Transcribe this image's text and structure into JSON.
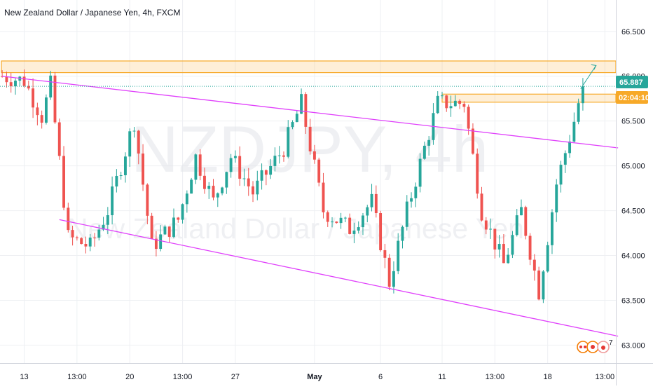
{
  "header": {
    "title": "New Zealand Dollar / Japanese Yen, 4h, FXCM"
  },
  "watermark": {
    "symbol": "NZDJPY, 4h",
    "name": "New Zealand Dollar / Japanese Yen"
  },
  "badges": {
    "price": "65.887",
    "countdown": "02:04:10",
    "indicator_count": "7"
  },
  "colors": {
    "up": "#26a69a",
    "down": "#ef5350",
    "channel": "#e040fb",
    "zone": "#f7a928",
    "price_line": "#26a69a"
  },
  "chart_data": {
    "type": "candlestick",
    "symbol": "NZDJPY",
    "interval": "4h",
    "source": "FXCM",
    "last_price": 65.887,
    "y_ticks": [
      "66.500",
      "66.000",
      "65.500",
      "65.000",
      "64.500",
      "64.000",
      "63.500",
      "63.000"
    ],
    "x_ticks": [
      "13",
      "13:00",
      "20",
      "13:00",
      "27",
      "May",
      "6",
      "11",
      "13:00",
      "18",
      "13:00"
    ],
    "ylim": [
      62.8,
      66.85
    ],
    "bar_count": 140,
    "x_tick_bars": [
      5,
      17,
      29,
      41,
      53,
      71,
      86,
      100,
      112,
      124,
      137
    ],
    "x_tick_bold": [
      false,
      false,
      false,
      false,
      false,
      true,
      false,
      false,
      false,
      false,
      false
    ],
    "close_path": [
      [
        0,
        66.0
      ],
      [
        5,
        65.95
      ],
      [
        9,
        65.55
      ],
      [
        11,
        65.9
      ],
      [
        15,
        64.2
      ],
      [
        20,
        64.1
      ],
      [
        24,
        64.5
      ],
      [
        30,
        65.5
      ],
      [
        34,
        64.1
      ],
      [
        40,
        64.4
      ],
      [
        44,
        65.1
      ],
      [
        48,
        64.6
      ],
      [
        52,
        65.1
      ],
      [
        57,
        64.7
      ],
      [
        64,
        65.2
      ],
      [
        68,
        65.7
      ],
      [
        73,
        64.5
      ],
      [
        79,
        64.3
      ],
      [
        84,
        64.6
      ],
      [
        88,
        63.7
      ],
      [
        92,
        64.5
      ],
      [
        96,
        65.2
      ],
      [
        99,
        65.7
      ],
      [
        105,
        65.7
      ],
      [
        109,
        64.5
      ],
      [
        114,
        63.9
      ],
      [
        118,
        64.5
      ],
      [
        122,
        63.6
      ],
      [
        126,
        64.8
      ],
      [
        130,
        65.5
      ],
      [
        132,
        65.9
      ]
    ],
    "annotations": {
      "resistance_zone": [
        66.04,
        66.17
      ],
      "minor_zone": [
        65.71,
        65.8
      ],
      "minor_zone_start_bar": 100,
      "upper_channel": [
        [
          0,
          66.0
        ],
        [
          140,
          65.2
        ]
      ],
      "lower_channel": [
        [
          13,
          64.4
        ],
        [
          140,
          63.1
        ]
      ],
      "target_arrow": [
        [
          131.5,
          65.86
        ],
        [
          135,
          66.12
        ]
      ]
    }
  }
}
